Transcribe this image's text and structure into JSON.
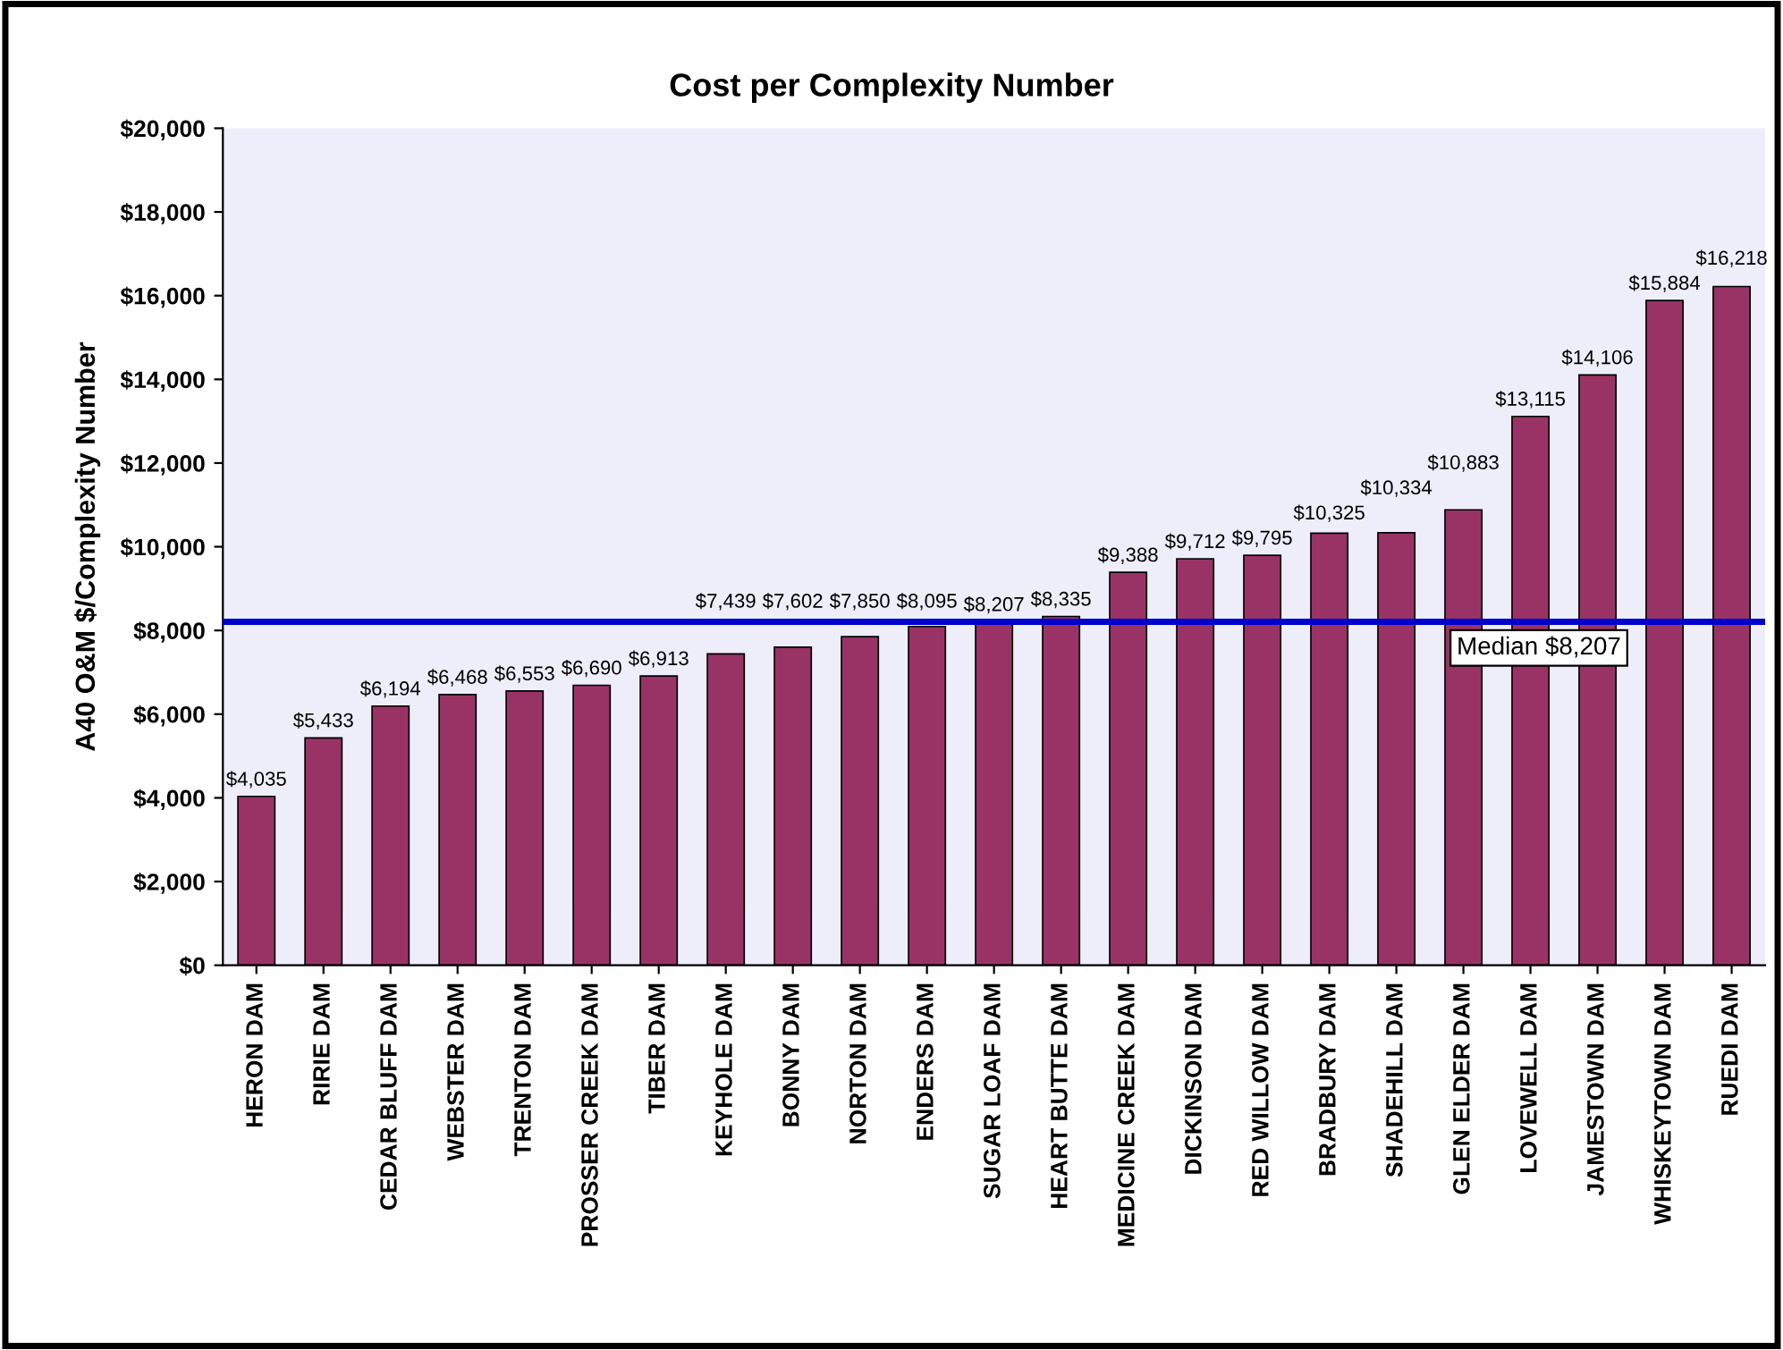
{
  "chart_data": {
    "type": "bar",
    "title": "Cost per Complexity Number",
    "ylabel": "A40 O&M $/Complexity Number",
    "categories": [
      "HERON DAM",
      "RIRIE DAM",
      "CEDAR BLUFF DAM",
      "WEBSTER DAM",
      "TRENTON DAM",
      "PROSSER CREEK DAM",
      "TIBER DAM",
      "KEYHOLE DAM",
      "BONNY DAM",
      "NORTON DAM",
      "ENDERS DAM",
      "SUGAR LOAF DAM",
      "HEART BUTTE DAM",
      "MEDICINE CREEK DAM",
      "DICKINSON DAM",
      "RED WILLOW DAM",
      "BRADBURY DAM",
      "SHADEHILL DAM",
      "GLEN ELDER DAM",
      "LOVEWELL DAM",
      "JAMESTOWN DAM",
      "WHISKEYTOWN DAM",
      "RUEDI DAM"
    ],
    "values": [
      4035,
      5433,
      6194,
      6468,
      6553,
      6690,
      6913,
      7439,
      7602,
      7850,
      8095,
      8207,
      8335,
      9388,
      9712,
      9795,
      10325,
      10334,
      10883,
      13115,
      14106,
      15884,
      16218
    ],
    "value_labels": [
      "$4,035",
      "$5,433",
      "$6,194",
      "$6,468",
      "$6,553",
      "$6,690",
      "$6,913",
      "$7,439",
      "$7,602",
      "$7,850",
      "$8,095",
      "$8,207",
      "$8,335",
      "$9,388",
      "$9,712",
      "$9,795",
      "$10,325",
      "$10,334",
      "$10,883",
      "$13,115",
      "$14,106",
      "$15,884",
      "$16,218"
    ],
    "color": "#993366",
    "ylim": [
      0,
      20000
    ],
    "yticks": [
      {
        "value": 0,
        "label": "$0"
      },
      {
        "value": 2000,
        "label": "$2,000"
      },
      {
        "value": 4000,
        "label": "$4,000"
      },
      {
        "value": 6000,
        "label": "$6,000"
      },
      {
        "value": 8000,
        "label": "$8,000"
      },
      {
        "value": 10000,
        "label": "$10,000"
      },
      {
        "value": 12000,
        "label": "$12,000"
      },
      {
        "value": 14000,
        "label": "$14,000"
      },
      {
        "value": 16000,
        "label": "$16,000"
      },
      {
        "value": 18000,
        "label": "$18,000"
      },
      {
        "value": 20000,
        "label": "$20,000"
      }
    ],
    "ref_lines": [
      {
        "axis": "y",
        "value": 8207,
        "label": "Median $8,207",
        "color": "#0000cc",
        "line_style": "solid"
      }
    ],
    "grid": false,
    "legend": false
  }
}
